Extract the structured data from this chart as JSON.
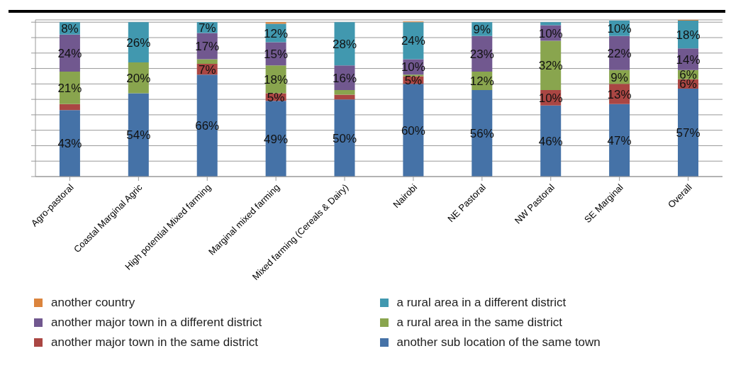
{
  "chart_data": {
    "type": "bar",
    "stacked": true,
    "grid": "y",
    "legend": "bottom",
    "categories": [
      "Agro-pastoral",
      "Coastal Marginal Agric",
      "High potential Mixed farming",
      "Marginal mixed farming",
      "Mixed farming (Cereals & Dairy)",
      "Nairobi",
      "NE Pastoral",
      "NW Pastoral",
      "SE Marginal",
      "Overall"
    ],
    "ylim": [
      0,
      101.5
    ],
    "yticks": [
      {
        "value": 0,
        "label": null
      },
      {
        "value": 10,
        "label": null
      },
      {
        "value": 20,
        "label": null
      },
      {
        "value": 30,
        "label": null
      },
      {
        "value": 40,
        "label": null
      },
      {
        "value": 50,
        "label": null
      },
      {
        "value": 60,
        "label": null
      },
      {
        "value": 70,
        "label": null
      },
      {
        "value": 80,
        "label": null
      },
      {
        "value": 90,
        "label": null
      },
      {
        "value": 100,
        "label": null
      }
    ],
    "series": [
      {
        "name": "another sub location of the same town",
        "color": "#4572a7",
        "values": [
          43,
          54,
          66,
          49,
          50,
          60,
          56,
          46,
          47,
          57
        ],
        "value_labels": [
          "43%",
          "54%",
          "66%",
          "49%",
          "50%",
          "60%",
          "56%",
          "46%",
          "47%",
          "57%"
        ]
      },
      {
        "name": "another major town in the same district",
        "color": "#aa4643",
        "values": [
          4,
          null,
          7,
          5,
          3,
          5,
          null,
          10,
          13,
          6
        ],
        "value_labels": [
          null,
          null,
          "7%",
          "5%",
          null,
          "5%",
          null,
          "10%",
          "13%",
          "6%"
        ]
      },
      {
        "name": "a rural area in the same district",
        "color": "#89a54e",
        "values": [
          21,
          20,
          3,
          18,
          3,
          1,
          12,
          32,
          9,
          6
        ],
        "value_labels": [
          "21%",
          "20%",
          null,
          "18%",
          null,
          null,
          "12%",
          "32%",
          "9%",
          "6%"
        ]
      },
      {
        "name": "another major town in a different district",
        "color": "#71588f",
        "values": [
          24,
          null,
          17,
          15,
          16,
          10,
          23,
          10,
          22,
          14
        ],
        "value_labels": [
          "24%",
          null,
          "17%",
          "15%",
          "16%",
          "10%",
          "23%",
          "10%",
          "22%",
          "14%"
        ]
      },
      {
        "name": "a rural area in a different district",
        "color": "#4198af",
        "values": [
          8,
          26,
          7,
          12,
          28,
          24,
          9,
          2,
          10,
          18
        ],
        "value_labels": [
          "8%",
          "26%",
          "7%",
          "12%",
          "28%",
          "24%",
          "9%",
          null,
          "10%",
          "18%"
        ]
      },
      {
        "name": "another country",
        "color": "#db843d",
        "values": [
          null,
          null,
          null,
          1,
          null,
          0.5,
          null,
          null,
          null,
          0.5
        ],
        "value_labels": [
          null,
          null,
          null,
          null,
          null,
          null,
          null,
          null,
          null,
          null
        ]
      }
    ]
  }
}
